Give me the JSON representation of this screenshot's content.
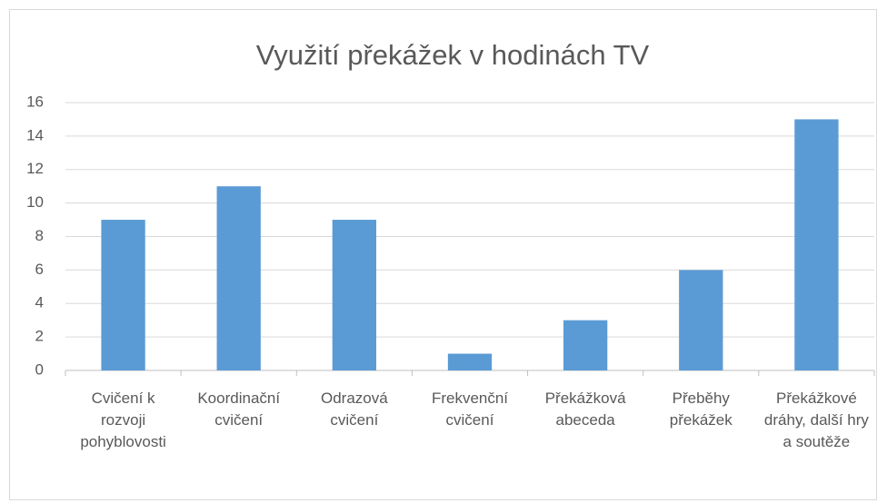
{
  "chart_data": {
    "type": "bar",
    "title": "Využití překážek v hodinách TV",
    "categories": [
      "Cvičení k rozvoji pohyblovosti",
      "Koordinační cvičení",
      "Odrazová cvičení",
      "Frekvenční cvičení",
      "Překážková abeceda",
      "Přeběhy překážek",
      "Překážkové dráhy, další hry a soutěže"
    ],
    "values": [
      9,
      11,
      9,
      1,
      3,
      6,
      15
    ],
    "color": "#5b9bd5",
    "ylim": [
      0,
      16
    ],
    "yticks": [
      0,
      2,
      4,
      6,
      8,
      10,
      12,
      14,
      16
    ],
    "grid": true
  }
}
